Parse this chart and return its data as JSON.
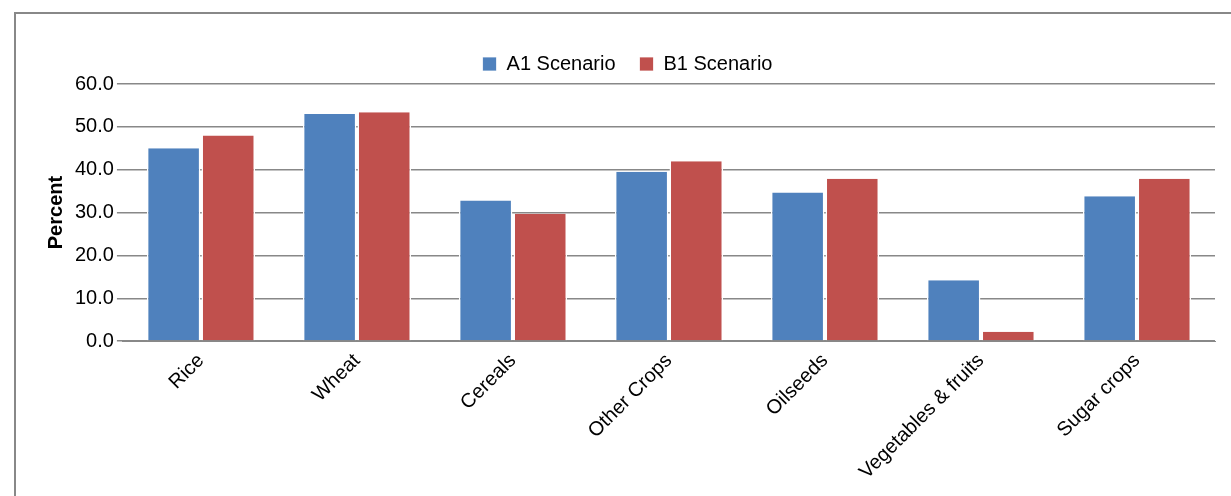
{
  "chart_data": {
    "type": "bar",
    "ylabel": "Percent",
    "categories": [
      "Rice",
      "Wheat",
      "Cereals",
      "Other Crops",
      "Oilseeds",
      "Vegetables & fruits",
      "Sugar crops"
    ],
    "series": [
      {
        "name": "A1 Scenario",
        "color": "#4f81bd",
        "values": [
          45,
          53,
          32.8,
          39.5,
          34.7,
          14.2,
          33.8
        ]
      },
      {
        "name": "B1 Scenario",
        "color": "#c0504d",
        "values": [
          48,
          53.4,
          29.7,
          42,
          37.9,
          2.2,
          37.9
        ]
      }
    ],
    "ylim": [
      0,
      60
    ],
    "yticks": [
      {
        "value": 0,
        "label": "0.0"
      },
      {
        "value": 10,
        "label": "10.0"
      },
      {
        "value": 20,
        "label": "20.0"
      },
      {
        "value": 30,
        "label": "30.0"
      },
      {
        "value": 40,
        "label": "40.0"
      },
      {
        "value": 50,
        "label": "50.0"
      },
      {
        "value": 60,
        "label": "60.0"
      }
    ],
    "grid": "y",
    "legend": "top"
  }
}
